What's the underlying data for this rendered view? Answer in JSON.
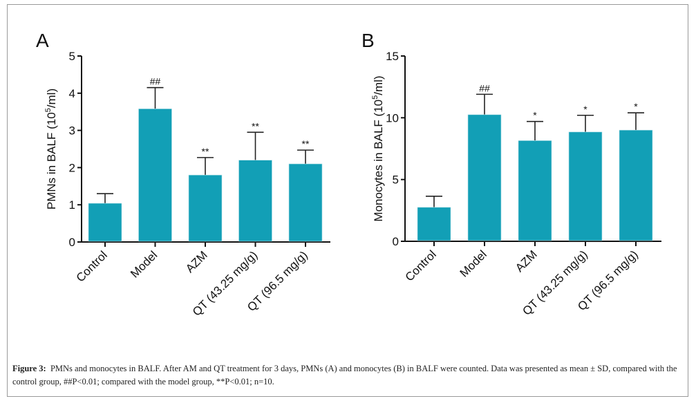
{
  "chart_data": [
    {
      "type": "bar",
      "panel": "A",
      "ylabel": "PMNs in BALF (10^5/ml)",
      "ylabel_main": "PMNs in BALF (10",
      "ylabel_sup": "5",
      "ylabel_end": "/ml)",
      "ylim": [
        0,
        5
      ],
      "yticks": [
        0,
        1,
        2,
        3,
        4,
        5
      ],
      "categories": [
        "Control",
        "Model",
        "AZM",
        "QT (43.25 mg/g)",
        "QT (96.5 mg/g)"
      ],
      "values": [
        1.04,
        3.58,
        1.8,
        2.2,
        2.1
      ],
      "error_upper": [
        1.3,
        4.15,
        2.27,
        2.95,
        2.47
      ],
      "annotations": [
        "",
        "##",
        "**",
        "**",
        "**"
      ],
      "bar_color": "#129fb6"
    },
    {
      "type": "bar",
      "panel": "B",
      "ylabel": "Monocytes in BALF (10^5/ml)",
      "ylabel_main": "Monocytes in BALF (10",
      "ylabel_sup": "5",
      "ylabel_end": "/ml)",
      "ylim": [
        0,
        15
      ],
      "yticks": [
        0,
        5,
        10,
        15
      ],
      "categories": [
        "Control",
        "Model",
        "AZM",
        "QT (43.25 mg/g)",
        "QT (96.5 mg/g)"
      ],
      "values": [
        2.75,
        10.25,
        8.15,
        8.85,
        9.0
      ],
      "error_upper": [
        3.65,
        11.9,
        9.7,
        10.2,
        10.4
      ],
      "annotations": [
        "",
        "##",
        "*",
        "*",
        "*"
      ],
      "bar_color": "#129fb6"
    }
  ],
  "caption": {
    "label": "Figure 3:",
    "text": "PMNs and monocytes in BALF. After AM and QT treatment for 3 days, PMNs (A) and monocytes (B) in BALF were counted. Data was presented as mean ± SD, compared with the control group, ##P<0.01; compared with the model group, **P<0.01; n=10."
  }
}
